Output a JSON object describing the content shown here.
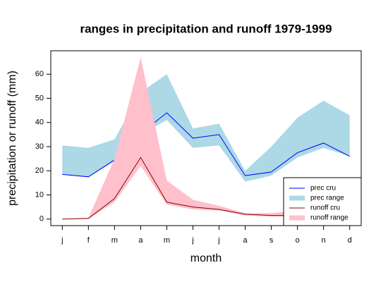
{
  "chart_data": {
    "type": "line",
    "title": "ranges in precipitation and runoff 1979-1999",
    "x_label": "month",
    "y_label": "precipitation or runoff (mm)",
    "categories": [
      "j",
      "f",
      "m",
      "a",
      "m",
      "j",
      "j",
      "a",
      "s",
      "o",
      "n",
      "d"
    ],
    "series": [
      {
        "name": "prec range",
        "color": "#add8e6",
        "kind": "band",
        "upper": [
          30.5,
          29.5,
          33,
          52.5,
          60,
          37.5,
          39.5,
          20,
          30,
          42,
          49,
          43
        ],
        "lower": [
          18.5,
          17.5,
          24,
          35,
          41,
          29.5,
          30.5,
          15.5,
          18,
          25.5,
          29.5,
          26
        ]
      },
      {
        "name": "prec cru",
        "color": "#0000ff",
        "kind": "line",
        "values": [
          18.5,
          17.5,
          24.5,
          35.5,
          44,
          33.5,
          35,
          18,
          19.5,
          27.5,
          31.5,
          26
        ]
      },
      {
        "name": "runoff range",
        "color": "#ffc0cb",
        "kind": "band",
        "upper": [
          0,
          0.5,
          25,
          67,
          16,
          8,
          5.5,
          2.5,
          2.5,
          3.5,
          3,
          2
        ],
        "lower": [
          0,
          0,
          7,
          22,
          6,
          4,
          3.5,
          1.5,
          1,
          1,
          0.8,
          0.5
        ]
      },
      {
        "name": "runoff cru",
        "color": "#8b0000",
        "kind": "line",
        "values": [
          0,
          0.3,
          8.5,
          25.5,
          7,
          5,
          4,
          2,
          1.5,
          1.5,
          1,
          0.8
        ]
      }
    ],
    "legend_order": [
      1,
      0,
      3,
      2
    ],
    "legend": "bottom-right",
    "xlim": [
      0.56,
      12.44
    ],
    "ylim": [
      -2.7,
      69.7
    ],
    "yticks": [
      0,
      10,
      20,
      30,
      40,
      50,
      60
    ]
  }
}
